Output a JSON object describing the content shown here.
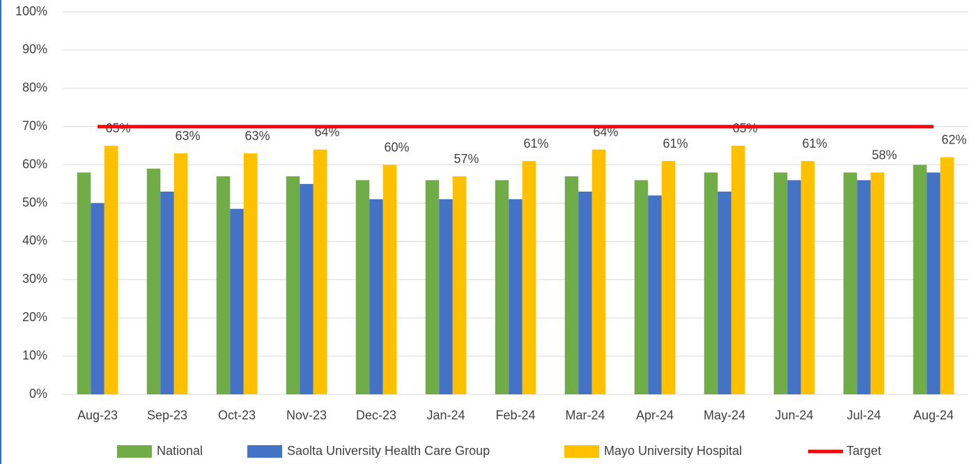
{
  "chart_data": {
    "type": "bar",
    "categories": [
      "Aug-23",
      "Sep-23",
      "Oct-23",
      "Nov-23",
      "Dec-23",
      "Jan-24",
      "Feb-24",
      "Mar-24",
      "Apr-24",
      "May-24",
      "Jun-24",
      "Jul-24",
      "Aug-24"
    ],
    "series": [
      {
        "name": "National",
        "color": "#70ad47",
        "values": [
          58,
          59,
          57,
          57,
          56,
          56,
          56,
          57,
          56,
          58,
          58,
          58,
          60
        ]
      },
      {
        "name": "Saolta University Health Care Group",
        "color": "#4472c4",
        "values": [
          50,
          53,
          48.5,
          55,
          51,
          51,
          51,
          53,
          52,
          53,
          56,
          56,
          58
        ]
      },
      {
        "name": "Mayo University Hospital",
        "color": "#ffc000",
        "values": [
          65,
          63,
          63,
          64,
          60,
          57,
          61,
          64,
          61,
          65,
          61,
          58,
          62
        ],
        "value_labels": [
          "65%",
          "63%",
          "63%",
          "64%",
          "60%",
          "57%",
          "61%",
          "64%",
          "61%",
          "65%",
          "61%",
          "58%",
          "62%"
        ]
      },
      {
        "name": "Target",
        "color": "#ff0000",
        "type": "line",
        "values": [
          70,
          70,
          70,
          70,
          70,
          70,
          70,
          70,
          70,
          70,
          70,
          70,
          70
        ]
      }
    ],
    "ylim": [
      0,
      100
    ],
    "yticks": [
      {
        "value": 0,
        "label": "0%"
      },
      {
        "value": 10,
        "label": "10%"
      },
      {
        "value": 20,
        "label": "20%"
      },
      {
        "value": 30,
        "label": "30%"
      },
      {
        "value": 40,
        "label": "40%"
      },
      {
        "value": 50,
        "label": "50%"
      },
      {
        "value": 60,
        "label": "60%"
      },
      {
        "value": 70,
        "label": "70%"
      },
      {
        "value": 80,
        "label": "80%"
      },
      {
        "value": 90,
        "label": "90%"
      },
      {
        "value": 100,
        "label": "100%"
      }
    ],
    "grid": true,
    "legend": "bottom"
  }
}
